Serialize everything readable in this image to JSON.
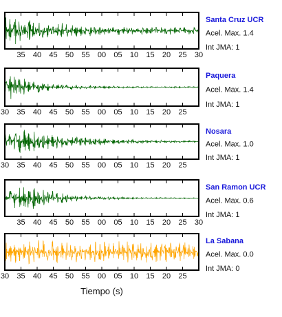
{
  "chart_data": {
    "type": "line",
    "xlabel": "Tiempo (s)",
    "x_ticks": [
      30,
      35,
      40,
      45,
      50,
      55,
      0,
      5,
      10,
      15,
      20,
      25
    ],
    "panels": [
      {
        "station": "Santa Cruz UCR",
        "accel_text": "Acel. Max. 1.4",
        "jma_text": "Int JMA: 1",
        "color": "#006400",
        "tick_labels": [
          "35",
          "40",
          "45",
          "50",
          "55",
          "00",
          "05",
          "10",
          "15",
          "20",
          "25",
          "30"
        ],
        "envelope": [
          [
            0,
            0.95
          ],
          [
            0.08,
            0.8
          ],
          [
            0.2,
            0.55
          ],
          [
            0.4,
            0.35
          ],
          [
            0.7,
            0.25
          ],
          [
            1.0,
            0.22
          ]
        ],
        "trace_seed": 11
      },
      {
        "station": "Paquera",
        "accel_text": "Acel. Max. 1.4",
        "jma_text": "Int JMA: 1",
        "color": "#006400",
        "tick_labels": [
          "30",
          "35",
          "40",
          "45",
          "50",
          "55",
          "00",
          "05",
          "10",
          "15",
          "20",
          "25"
        ],
        "envelope": [
          [
            0,
            0.55
          ],
          [
            0.04,
            0.8
          ],
          [
            0.12,
            0.45
          ],
          [
            0.3,
            0.15
          ],
          [
            0.6,
            0.06
          ],
          [
            1.0,
            0.04
          ]
        ],
        "trace_seed": 23
      },
      {
        "station": "Nosara",
        "accel_text": "Acel. Max. 1.0",
        "jma_text": "Int JMA: 1",
        "color": "#006400",
        "tick_labels": [
          "30",
          "35",
          "40",
          "45",
          "50",
          "55",
          "00",
          "05",
          "10",
          "15",
          "20",
          "25"
        ],
        "envelope": [
          [
            0,
            0.5
          ],
          [
            0.08,
            0.9
          ],
          [
            0.18,
            0.55
          ],
          [
            0.4,
            0.3
          ],
          [
            0.7,
            0.12
          ],
          [
            1.0,
            0.06
          ]
        ],
        "trace_seed": 37
      },
      {
        "station": "San Ramon UCR",
        "accel_text": "Acel. Max. 0.6",
        "jma_text": "Int JMA: 1",
        "color": "#006400",
        "tick_labels": [
          "35",
          "40",
          "45",
          "50",
          "55",
          "00",
          "05",
          "10",
          "15",
          "20",
          "25",
          "30"
        ],
        "envelope": [
          [
            0,
            0.06
          ],
          [
            0.03,
            0.5
          ],
          [
            0.1,
            0.85
          ],
          [
            0.2,
            0.5
          ],
          [
            0.4,
            0.15
          ],
          [
            0.7,
            0.05
          ],
          [
            1.0,
            0.03
          ]
        ],
        "trace_seed": 53
      },
      {
        "station": "La Sabana",
        "accel_text": "Acel. Max. 0.0",
        "jma_text": "Int JMA: 0",
        "color": "#ffa500",
        "tick_labels": [
          "30",
          "35",
          "40",
          "45",
          "50",
          "55",
          "00",
          "05",
          "10",
          "15",
          "20",
          "25"
        ],
        "envelope": [
          [
            0,
            0.6
          ],
          [
            0.15,
            0.8
          ],
          [
            0.3,
            0.65
          ],
          [
            0.5,
            0.6
          ],
          [
            0.7,
            0.75
          ],
          [
            1.0,
            0.55
          ]
        ],
        "trace_seed": 71
      }
    ]
  }
}
